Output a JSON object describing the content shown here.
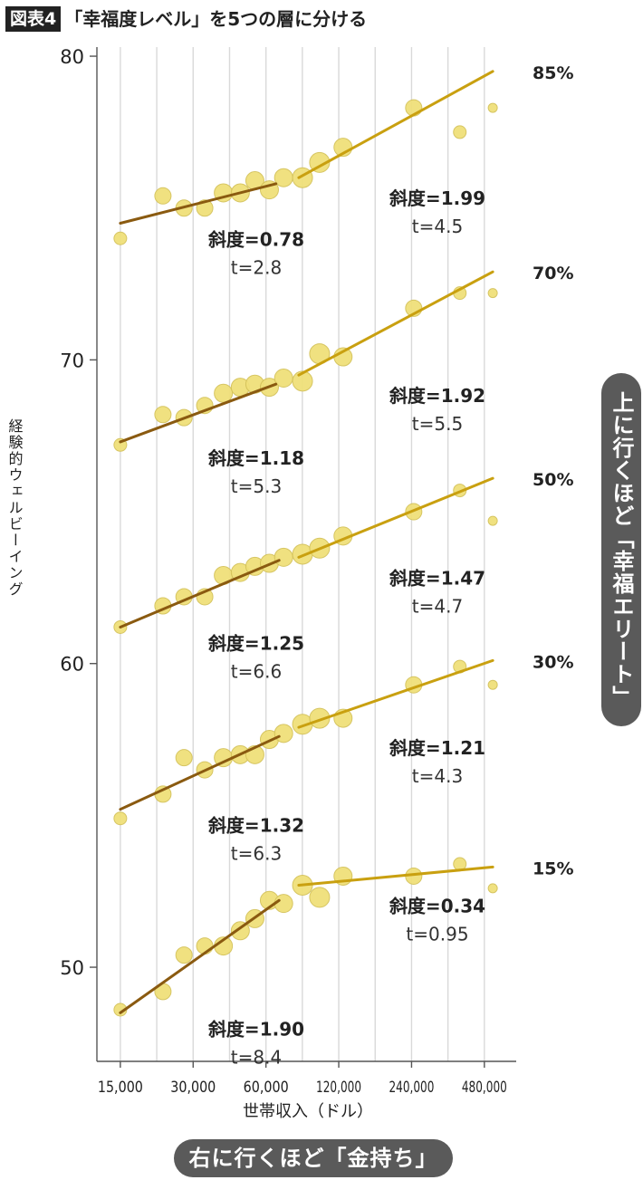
{
  "header": {
    "badge": "図表4",
    "title": "「幸福度レベル」を5つの層に分ける"
  },
  "colors": {
    "point": "#f0e07a",
    "point_stroke": "#d4c25a",
    "low_line": "#8a5a10",
    "high_line": "#c9a010",
    "grid": "#d9d9d9"
  },
  "chart_data": {
    "type": "scatter",
    "x_axis": {
      "label": "世帯収入（ドル）",
      "scale": "log2",
      "ticks": [
        15000,
        30000,
        60000,
        120000,
        240000,
        480000
      ],
      "tick_labels": [
        "15,000",
        "30,000",
        "60,000",
        "120,000",
        "240,000",
        "480,000"
      ],
      "range": [
        12000,
        650000
      ]
    },
    "y_axis": {
      "label": "経験的ウェルビーイング",
      "ticks": [
        50,
        60,
        70,
        80
      ],
      "range": [
        46.9,
        80.3
      ]
    },
    "grid": true,
    "strata": [
      {
        "percentile": "85%",
        "points": [
          [
            15000,
            74.0
          ],
          [
            22500,
            75.4
          ],
          [
            27500,
            75.0
          ],
          [
            33500,
            75.0
          ],
          [
            40000,
            75.5
          ],
          [
            47000,
            75.5
          ],
          [
            54000,
            75.9
          ],
          [
            62000,
            75.6
          ],
          [
            71000,
            76.0
          ],
          [
            85000,
            76.0
          ],
          [
            100000,
            76.5
          ],
          [
            125000,
            77.0
          ],
          [
            245000,
            78.3
          ],
          [
            380000,
            77.5
          ],
          [
            520000,
            78.3
          ]
        ],
        "low_fit": {
          "x": [
            15000,
            66000
          ],
          "y": [
            74.5,
            75.8
          ]
        },
        "high_fit": {
          "x": [
            82000,
            520000
          ],
          "y": [
            76.0,
            79.5
          ]
        },
        "low_label": {
          "slope": "斜度=0.78",
          "t": "t=2.8"
        },
        "high_label": {
          "slope": "斜度=1.99",
          "t": "t=4.5"
        }
      },
      {
        "percentile": "70%",
        "points": [
          [
            15000,
            67.2
          ],
          [
            22500,
            68.2
          ],
          [
            27500,
            68.1
          ],
          [
            33500,
            68.5
          ],
          [
            40000,
            68.9
          ],
          [
            47000,
            69.1
          ],
          [
            54000,
            69.2
          ],
          [
            62000,
            69.1
          ],
          [
            71000,
            69.4
          ],
          [
            85000,
            69.3
          ],
          [
            100000,
            70.2
          ],
          [
            125000,
            70.1
          ],
          [
            245000,
            71.7
          ],
          [
            380000,
            72.2
          ],
          [
            520000,
            72.2
          ]
        ],
        "low_fit": {
          "x": [
            15000,
            66000
          ],
          "y": [
            67.3,
            69.2
          ]
        },
        "high_fit": {
          "x": [
            82000,
            520000
          ],
          "y": [
            69.5,
            72.9
          ]
        },
        "low_label": {
          "slope": "斜度=1.18",
          "t": "t=5.3"
        },
        "high_label": {
          "slope": "斜度=1.92",
          "t": "t=5.5"
        }
      },
      {
        "percentile": "50%",
        "points": [
          [
            15000,
            61.2
          ],
          [
            22500,
            61.9
          ],
          [
            27500,
            62.2
          ],
          [
            33500,
            62.2
          ],
          [
            40000,
            62.9
          ],
          [
            47000,
            63.0
          ],
          [
            54000,
            63.2
          ],
          [
            62000,
            63.3
          ],
          [
            71000,
            63.5
          ],
          [
            85000,
            63.6
          ],
          [
            100000,
            63.8
          ],
          [
            125000,
            64.2
          ],
          [
            245000,
            65.0
          ],
          [
            380000,
            65.7
          ],
          [
            520000,
            64.7
          ]
        ],
        "low_fit": {
          "x": [
            15000,
            68000
          ],
          "y": [
            61.2,
            63.4
          ]
        },
        "high_fit": {
          "x": [
            82000,
            520000
          ],
          "y": [
            63.5,
            66.1
          ]
        },
        "low_label": {
          "slope": "斜度=1.25",
          "t": "t=6.6"
        },
        "high_label": {
          "slope": "斜度=1.47",
          "t": "t=4.7"
        }
      },
      {
        "percentile": "30%",
        "points": [
          [
            15000,
            54.9
          ],
          [
            22500,
            55.7
          ],
          [
            27500,
            56.9
          ],
          [
            33500,
            56.5
          ],
          [
            40000,
            56.9
          ],
          [
            47000,
            57.0
          ],
          [
            54000,
            57.0
          ],
          [
            62000,
            57.5
          ],
          [
            71000,
            57.7
          ],
          [
            85000,
            58.0
          ],
          [
            100000,
            58.2
          ],
          [
            125000,
            58.2
          ],
          [
            245000,
            59.3
          ],
          [
            380000,
            59.9
          ],
          [
            520000,
            59.3
          ]
        ],
        "low_fit": {
          "x": [
            15000,
            68000
          ],
          "y": [
            55.2,
            57.6
          ]
        },
        "high_fit": {
          "x": [
            82000,
            520000
          ],
          "y": [
            57.9,
            60.1
          ]
        },
        "low_label": {
          "slope": "斜度=1.32",
          "t": "t=6.3"
        },
        "high_label": {
          "slope": "斜度=1.21",
          "t": "t=4.3"
        }
      },
      {
        "percentile": "15%",
        "points": [
          [
            15000,
            48.6
          ],
          [
            22500,
            49.2
          ],
          [
            27500,
            50.4
          ],
          [
            33500,
            50.7
          ],
          [
            40000,
            50.7
          ],
          [
            47000,
            51.2
          ],
          [
            54000,
            51.6
          ],
          [
            62000,
            52.2
          ],
          [
            71000,
            52.1
          ],
          [
            85000,
            52.7
          ],
          [
            100000,
            52.3
          ],
          [
            125000,
            53.0
          ],
          [
            245000,
            53.0
          ],
          [
            380000,
            53.4
          ],
          [
            520000,
            52.6
          ]
        ],
        "low_fit": {
          "x": [
            15000,
            68000
          ],
          "y": [
            48.5,
            52.2
          ]
        },
        "high_fit": {
          "x": [
            82000,
            520000
          ],
          "y": [
            52.7,
            53.3
          ]
        },
        "low_label": {
          "slope": "斜度=1.90",
          "t": "t=8.4"
        },
        "high_label": {
          "slope": "斜度=0.34",
          "t": "t=0.95"
        }
      }
    ]
  },
  "annotations": {
    "right_pill": "上に行くほど「幸福エリート」",
    "bottom_pill": "右に行くほど「金持ち」"
  }
}
